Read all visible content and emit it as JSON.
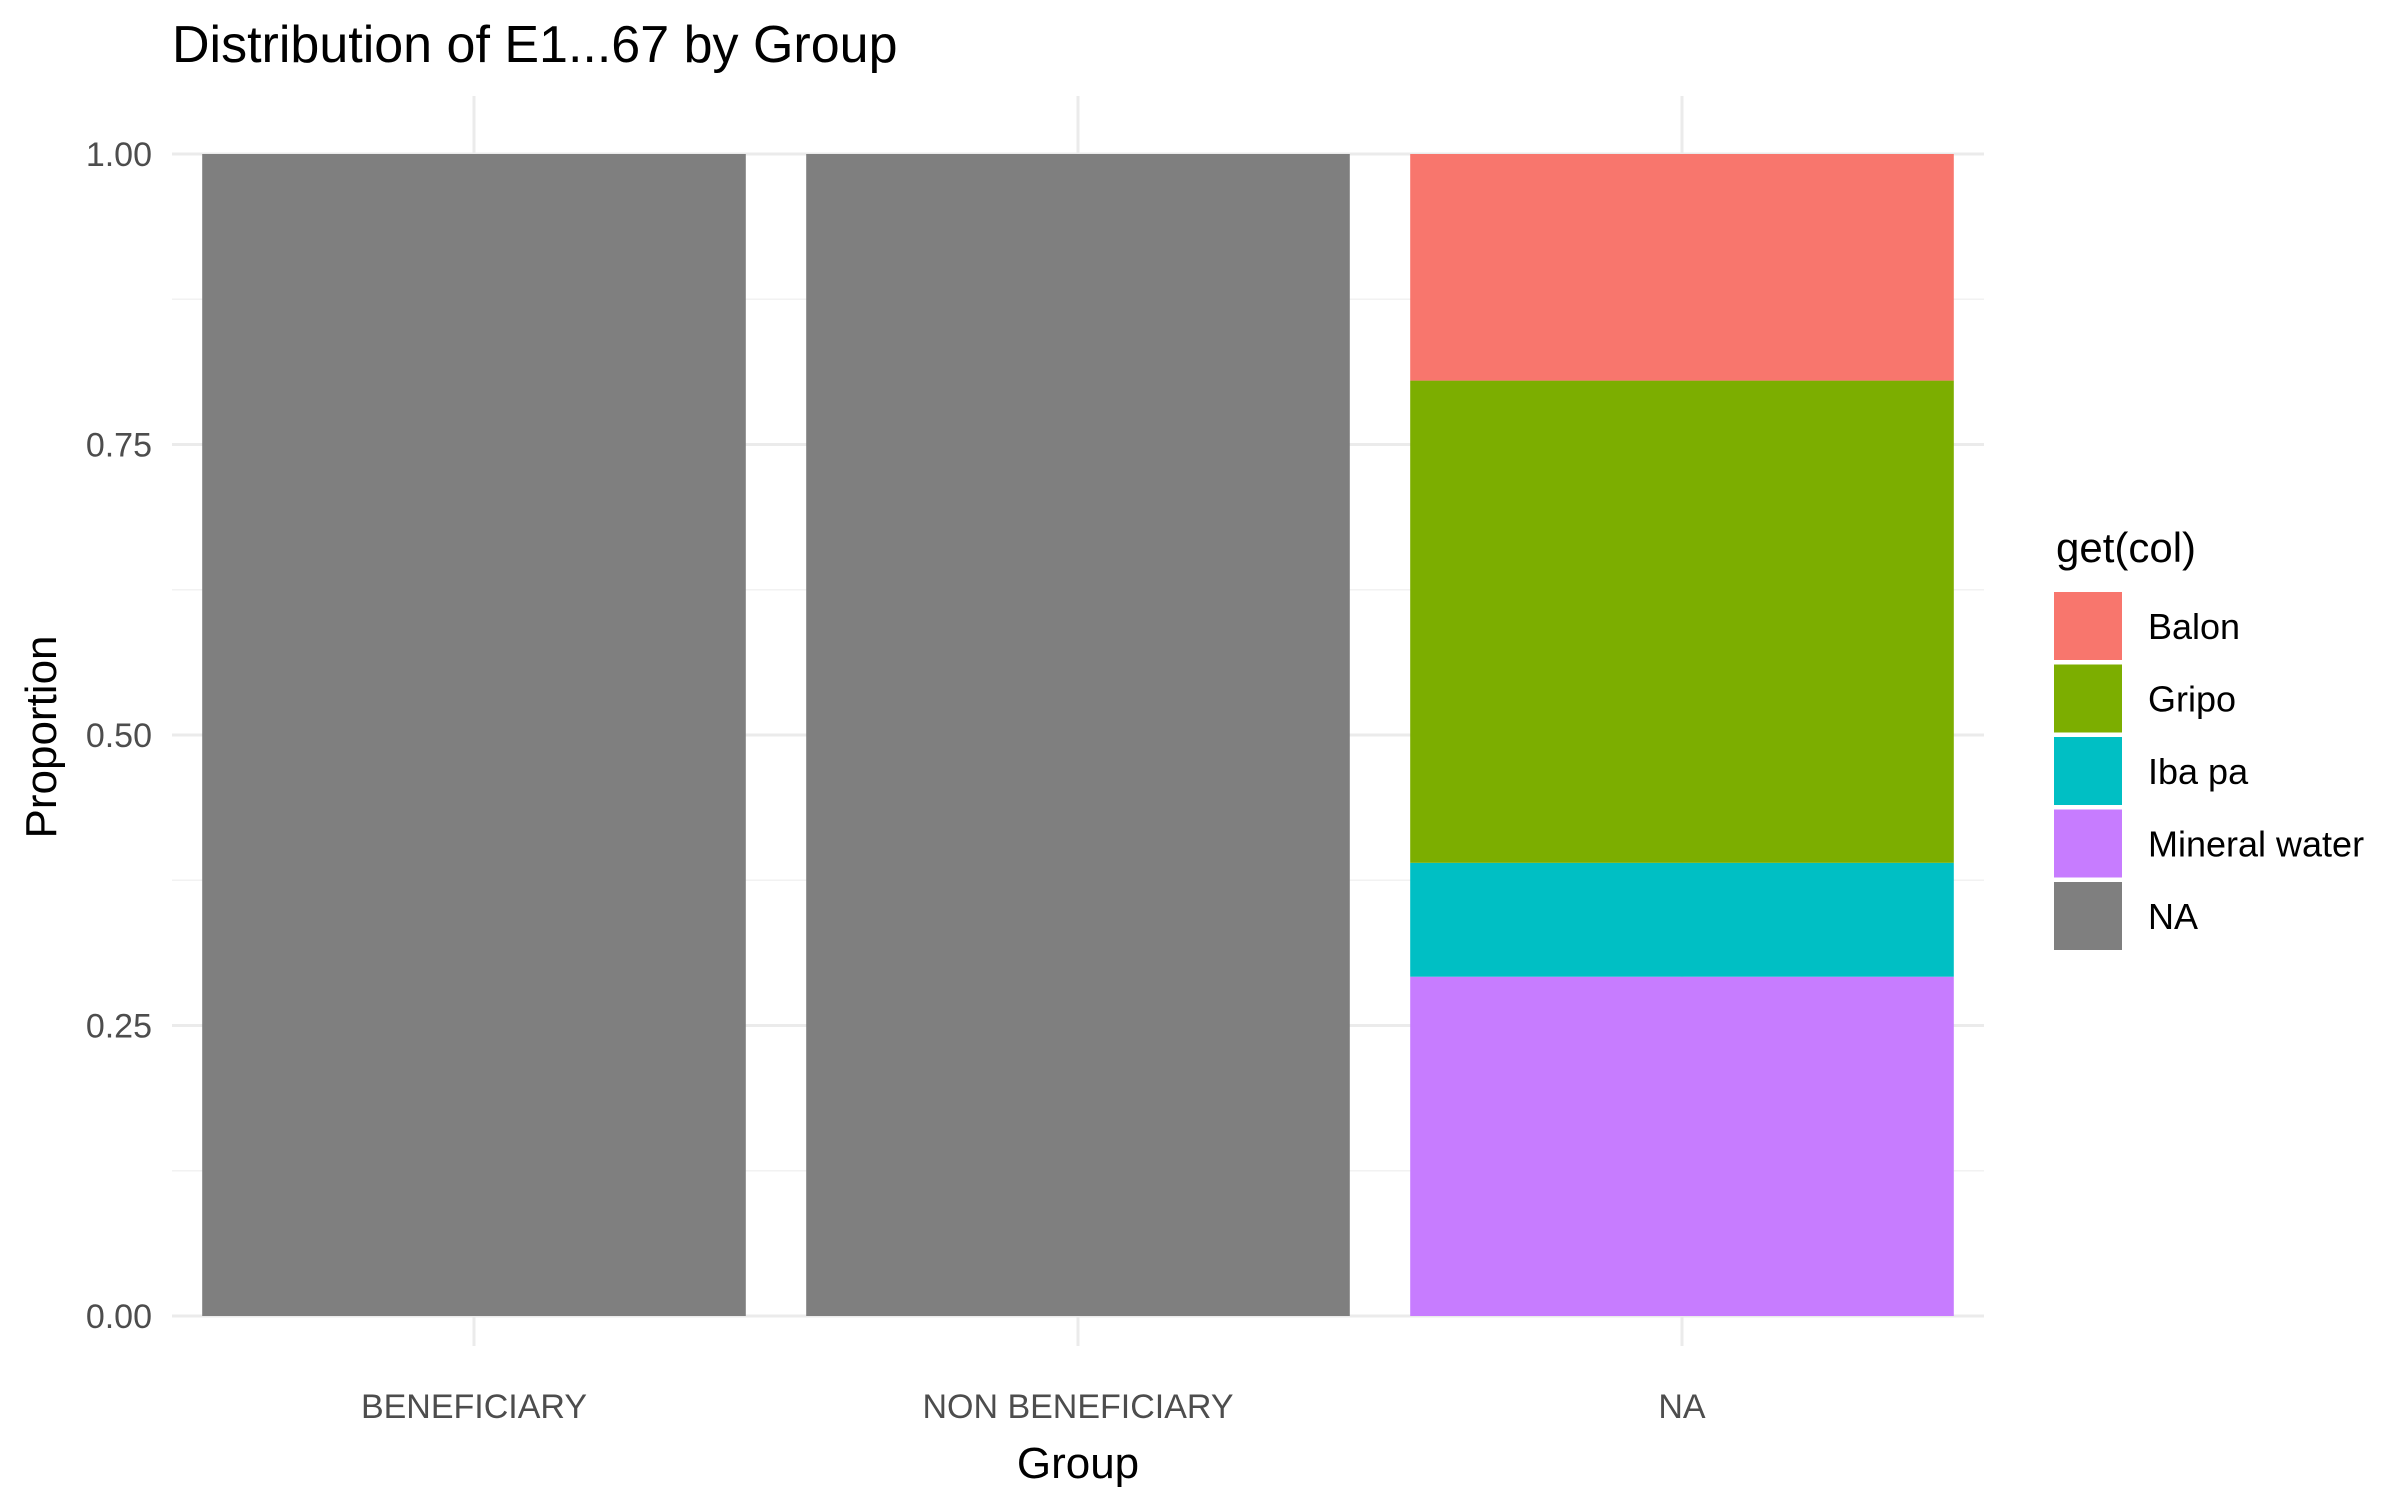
{
  "chart_data": {
    "type": "bar",
    "stacked": true,
    "title": "Distribution of E1...67 by Group",
    "xlabel": "Group",
    "ylabel": "Proportion",
    "categories": [
      "BENEFICIARY",
      "NON BENEFICIARY",
      "NA"
    ],
    "ylim": [
      0,
      1
    ],
    "yticks": [
      "0.00",
      "0.25",
      "0.50",
      "0.75",
      "1.00"
    ],
    "grid": true,
    "legend": {
      "title": "get(col)",
      "position": "right",
      "entries": [
        "Balon",
        "Gripo",
        "Iba pa",
        "Mineral water",
        "NA"
      ]
    },
    "series": [
      {
        "name": "Balon",
        "color": "#F8766D",
        "values": [
          0,
          0,
          0.195
        ]
      },
      {
        "name": "Gripo",
        "color": "#7CAE00",
        "values": [
          0,
          0,
          0.415
        ]
      },
      {
        "name": "Iba pa",
        "color": "#00BFC4",
        "values": [
          0,
          0,
          0.098
        ]
      },
      {
        "name": "Mineral water",
        "color": "#C77CFF",
        "values": [
          0,
          0,
          0.292
        ]
      },
      {
        "name": "NA",
        "color": "#7F7F7F",
        "values": [
          1,
          1,
          0
        ]
      }
    ]
  }
}
